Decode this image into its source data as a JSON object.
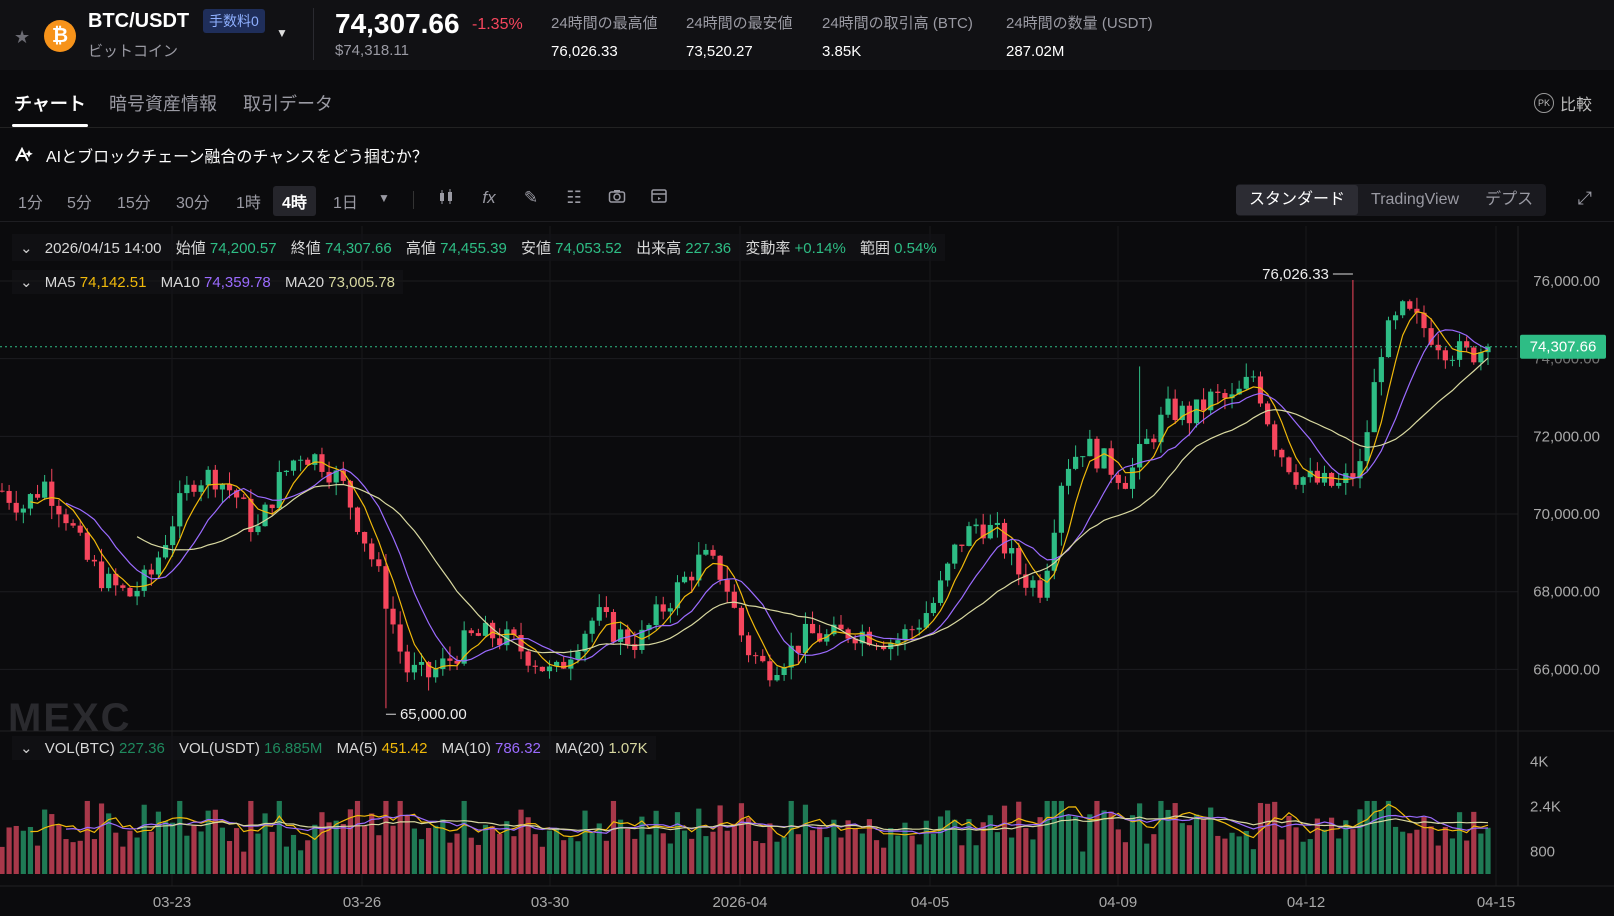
{
  "header": {
    "pair": "BTC/USDT",
    "fee_badge": "手数料0",
    "coin_name": "ビットコイン",
    "last_price": "74,307.66",
    "change": "-1.35%",
    "last_usd": "$74,318.11",
    "stats": [
      {
        "label": "24時間の最高値",
        "value": "76,026.33"
      },
      {
        "label": "24時間の最安値",
        "value": "73,520.27"
      },
      {
        "label": "24時間の取引高 (BTC)",
        "value": "3.85K"
      },
      {
        "label": "24時間の数量 (USDT)",
        "value": "287.02M"
      }
    ]
  },
  "tabs": [
    {
      "label": "チャート"
    },
    {
      "label": "暗号資産情報"
    },
    {
      "label": "取引データ"
    }
  ],
  "compare": {
    "icon_text": "PK",
    "label": "比較"
  },
  "promo": "AIとブロックチェーン融合のチャンスをどう掴むか？",
  "timeframes": [
    "1分",
    "5分",
    "15分",
    "30分",
    "1時",
    "4時",
    "1日"
  ],
  "view_modes": [
    "スタンダード",
    "TradingView",
    "デプス"
  ],
  "ohlc": {
    "date": "2026/04/15 14:00",
    "open_label": "始値",
    "open": "74,200.57",
    "close_label": "終値",
    "close": "74,307.66",
    "high_label": "高値",
    "high": "74,455.39",
    "low_label": "安値",
    "low": "74,053.52",
    "vol_label": "出来高",
    "vol": "227.36",
    "chg_label": "変動率",
    "chg": "+0.14%",
    "range_label": "範囲",
    "range": "0.54%"
  },
  "ma": {
    "ma5_label": "MA5",
    "ma5": "74,142.51",
    "ma10_label": "MA10",
    "ma10": "74,359.78",
    "ma20_label": "MA20",
    "ma20": "73,005.78"
  },
  "vol_legend": {
    "btc_label": "VOL(BTC)",
    "btc": "227.36",
    "usdt_label": "VOL(USDT)",
    "usdt": "16.885M",
    "ma5_label": "MA(5)",
    "ma5": "451.42",
    "ma10_label": "MA(10)",
    "ma10": "786.32",
    "ma20_label": "MA(20)",
    "ma20": "1.07K"
  },
  "watermark": "MEXC",
  "chart_data": {
    "type": "candlestick",
    "price_axis": [
      "76,000.00",
      "72,000.00",
      "70,000.00",
      "68,000.00",
      "66,000.00"
    ],
    "price_ylim": [
      64800,
      76900
    ],
    "current_price_label": "74,307.66",
    "high_marker": "76,026.33",
    "low_marker": "65,000.00",
    "volume_axis": [
      "4K",
      "2.4K",
      "800"
    ],
    "x_labels": [
      "03-23",
      "03-26",
      "03-30",
      "2026-04",
      "04-05",
      "04-09",
      "04-12",
      "04-15"
    ],
    "close_trend": [
      70600,
      70200,
      70800,
      70000,
      68800,
      68200,
      67900,
      68400,
      69800,
      70900,
      71000,
      70500,
      69500,
      70800,
      71600,
      71400,
      70800,
      69500,
      68000,
      66000,
      65800,
      66200,
      66800,
      66900,
      66700,
      66300,
      65800,
      66700,
      67400,
      66900,
      66700,
      67500,
      68200,
      68900,
      68400,
      66600,
      66000,
      66400,
      66900,
      66800,
      67000,
      66900,
      66700,
      67100,
      67800,
      69200,
      69800,
      69400,
      68400,
      68100,
      71200,
      71800,
      71300,
      70900,
      71900,
      72700,
      72500,
      73000,
      72900,
      73600,
      71800,
      71000,
      70800,
      70700,
      71200,
      74400,
      75200,
      74800,
      74300,
      74100,
      74307
    ],
    "ma20_trend": [
      72200,
      70400,
      69200,
      70000,
      70700,
      69600,
      67800,
      67100,
      67700,
      67900,
      67600,
      67200,
      67600,
      68400,
      70000,
      71400,
      72600,
      72300,
      71800,
      73600
    ]
  }
}
